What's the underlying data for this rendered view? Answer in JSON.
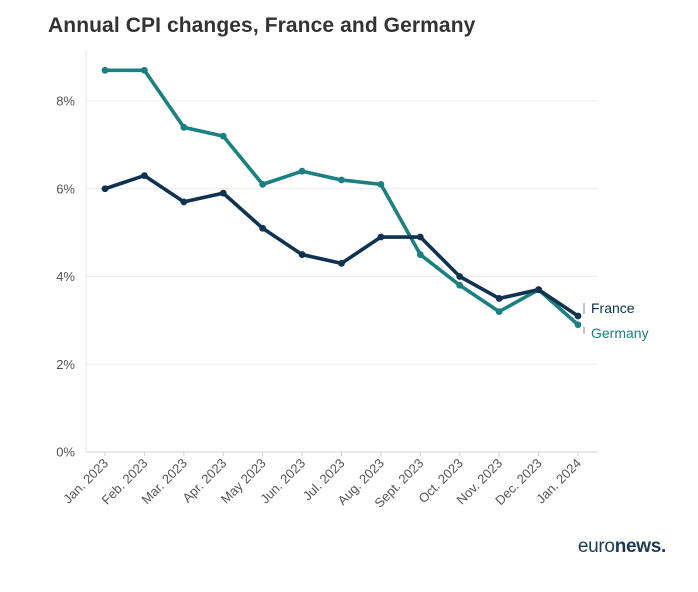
{
  "chart_data": {
    "type": "line",
    "title": "Annual CPI changes, France and Germany",
    "xlabel": "",
    "ylabel": "",
    "categories": [
      "Jan. 2023",
      "Feb. 2023",
      "Mar. 2023",
      "Apr. 2023",
      "May 2023",
      "Jun. 2023",
      "Jul. 2023",
      "Aug. 2023",
      "Sept. 2023",
      "Oct. 2023",
      "Nov. 2023",
      "Dec. 2023",
      "Jan. 2024"
    ],
    "ylim": [
      0,
      8.8
    ],
    "yticks": [
      0,
      2,
      4,
      6,
      8
    ],
    "ytick_labels": [
      "0%",
      "2%",
      "4%",
      "6%",
      "8%"
    ],
    "grid": true,
    "legend": "direct labels at line ends (right)",
    "series": [
      {
        "name": "France",
        "color": "#0e3250",
        "values": [
          6.0,
          6.3,
          5.7,
          5.9,
          5.1,
          4.5,
          4.3,
          4.9,
          4.9,
          4.0,
          3.5,
          3.7,
          3.1
        ]
      },
      {
        "name": "Germany",
        "color": "#1a8080",
        "values": [
          8.7,
          8.7,
          7.4,
          7.2,
          6.1,
          6.4,
          6.2,
          6.1,
          4.5,
          3.8,
          3.2,
          3.7,
          2.9
        ]
      }
    ]
  },
  "brand": {
    "part1": "euro",
    "part2": "news",
    "dot": "."
  }
}
